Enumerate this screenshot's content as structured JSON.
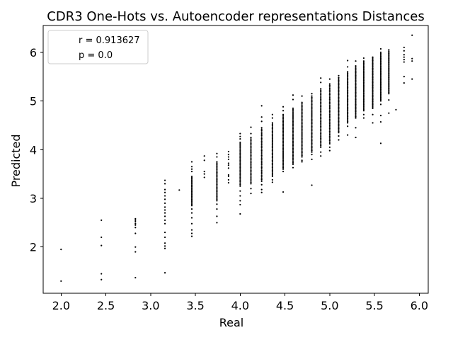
{
  "chart_data": {
    "type": "scatter",
    "title": "CDR3 One-Hots vs. Autoencoder representations Distances",
    "xlabel": "Real",
    "ylabel": "Predicted",
    "xlim": [
      1.8,
      6.1
    ],
    "ylim": [
      1.05,
      6.55
    ],
    "xticks": [
      2.0,
      2.5,
      3.0,
      3.5,
      4.0,
      4.5,
      5.0,
      5.5,
      6.0
    ],
    "xtick_labels": [
      "2.0",
      "2.5",
      "3.0",
      "3.5",
      "4.0",
      "4.5",
      "5.0",
      "5.5",
      "6.0"
    ],
    "yticks": [
      2,
      3,
      4,
      5,
      6
    ],
    "ytick_labels": [
      "2",
      "3",
      "4",
      "5",
      "6"
    ],
    "grid": false,
    "marker_color": "#000000",
    "legend": {
      "placement": "top-left",
      "entries": [
        "r = 0.913627",
        "p = 0.0"
      ]
    },
    "columns": [
      {
        "x": 2.0,
        "values": [
          1.95,
          1.3
        ]
      },
      {
        "x": 2.45,
        "values": [
          2.55,
          2.2,
          2.03,
          1.45,
          1.33
        ]
      },
      {
        "x": 2.83,
        "values": [
          2.58,
          2.55,
          2.52,
          2.48,
          2.45,
          2.4,
          2.28,
          2.0,
          1.9,
          1.37
        ]
      },
      {
        "x": 3.16,
        "values": [
          3.37,
          3.3,
          3.18,
          3.12,
          3.05,
          2.98,
          2.9,
          2.82,
          2.76,
          2.7,
          2.63,
          2.55,
          2.48,
          2.3,
          2.2,
          2.08,
          2.02,
          1.97,
          1.47
        ]
      },
      {
        "x": 3.32,
        "values": [
          3.17
        ]
      },
      {
        "x": 3.46,
        "range": [
          2.85,
          3.45
        ],
        "n": 24,
        "extra": [
          3.75,
          3.65,
          3.6,
          3.55,
          2.78,
          2.7,
          2.6,
          2.48,
          2.35,
          2.28,
          2.22
        ]
      },
      {
        "x": 3.6,
        "values": [
          3.87,
          3.78,
          3.55,
          3.5,
          3.43
        ]
      },
      {
        "x": 3.74,
        "range": [
          2.95,
          3.75
        ],
        "n": 30,
        "extra": [
          3.92,
          3.85,
          2.88,
          2.78,
          2.63,
          2.5
        ]
      },
      {
        "x": 3.87,
        "values": [
          3.96,
          3.9,
          3.85,
          3.8,
          3.72,
          3.68,
          3.62,
          3.48,
          3.45,
          3.38,
          3.32
        ]
      },
      {
        "x": 4.0,
        "range": [
          3.25,
          4.15
        ],
        "n": 32,
        "extra": [
          4.33,
          4.27,
          4.22,
          3.15,
          3.05,
          2.95,
          2.87,
          2.68
        ]
      },
      {
        "x": 4.12,
        "range": [
          3.3,
          4.25
        ],
        "n": 32,
        "extra": [
          4.46,
          4.33,
          3.2,
          3.1
        ]
      },
      {
        "x": 4.24,
        "range": [
          3.35,
          4.45
        ],
        "n": 36,
        "extra": [
          4.9,
          4.67,
          4.58,
          3.28,
          3.18,
          3.12
        ]
      },
      {
        "x": 4.36,
        "range": [
          3.45,
          4.55
        ],
        "n": 38,
        "extra": [
          4.72,
          4.65,
          3.38,
          3.33
        ]
      },
      {
        "x": 4.48,
        "range": [
          3.6,
          4.72
        ],
        "n": 40,
        "extra": [
          4.88,
          4.8,
          3.55,
          3.13
        ]
      },
      {
        "x": 4.59,
        "range": [
          3.7,
          4.85
        ],
        "n": 40,
        "extra": [
          5.12,
          5.03,
          3.63
        ]
      },
      {
        "x": 4.69,
        "range": [
          3.85,
          4.97
        ],
        "n": 40,
        "extra": [
          5.1,
          3.78,
          3.75
        ]
      },
      {
        "x": 4.8,
        "range": [
          3.95,
          5.1
        ],
        "n": 40,
        "extra": [
          5.15,
          3.9,
          3.8,
          3.27
        ]
      },
      {
        "x": 4.9,
        "range": [
          4.05,
          5.25
        ],
        "n": 40,
        "extra": [
          5.47,
          5.38,
          3.95,
          3.87
        ]
      },
      {
        "x": 5.0,
        "range": [
          4.12,
          5.35
        ],
        "n": 40,
        "extra": [
          5.45,
          4.05,
          3.98
        ]
      },
      {
        "x": 5.1,
        "range": [
          4.35,
          5.48
        ],
        "n": 40,
        "extra": [
          5.52,
          4.28,
          4.2
        ]
      },
      {
        "x": 5.2,
        "range": [
          4.55,
          5.6
        ],
        "n": 40,
        "extra": [
          5.83,
          5.7,
          4.48,
          4.3
        ]
      },
      {
        "x": 5.29,
        "range": [
          4.65,
          5.72
        ],
        "n": 40,
        "extra": [
          5.82,
          4.45,
          4.25
        ]
      },
      {
        "x": 5.38,
        "range": [
          4.8,
          5.82
        ],
        "n": 40,
        "extra": [
          5.88,
          4.72,
          4.65
        ]
      },
      {
        "x": 5.48,
        "range": [
          4.85,
          5.88
        ],
        "n": 40,
        "extra": [
          5.9,
          4.72,
          4.55
        ]
      },
      {
        "x": 5.57,
        "range": [
          5.0,
          6.0
        ],
        "n": 40,
        "extra": [
          6.07,
          4.93,
          4.7,
          4.57,
          4.13
        ]
      },
      {
        "x": 5.66,
        "range": [
          5.15,
          6.02
        ],
        "n": 38,
        "extra": [
          6.05,
          5.02,
          4.75
        ]
      },
      {
        "x": 5.74,
        "values": [
          4.82
        ]
      },
      {
        "x": 5.83,
        "values": [
          6.1,
          6.03,
          5.95,
          5.9,
          5.85,
          5.8,
          5.5,
          5.37
        ]
      },
      {
        "x": 5.92,
        "values": [
          6.35,
          5.87,
          5.82,
          5.45
        ]
      }
    ]
  }
}
